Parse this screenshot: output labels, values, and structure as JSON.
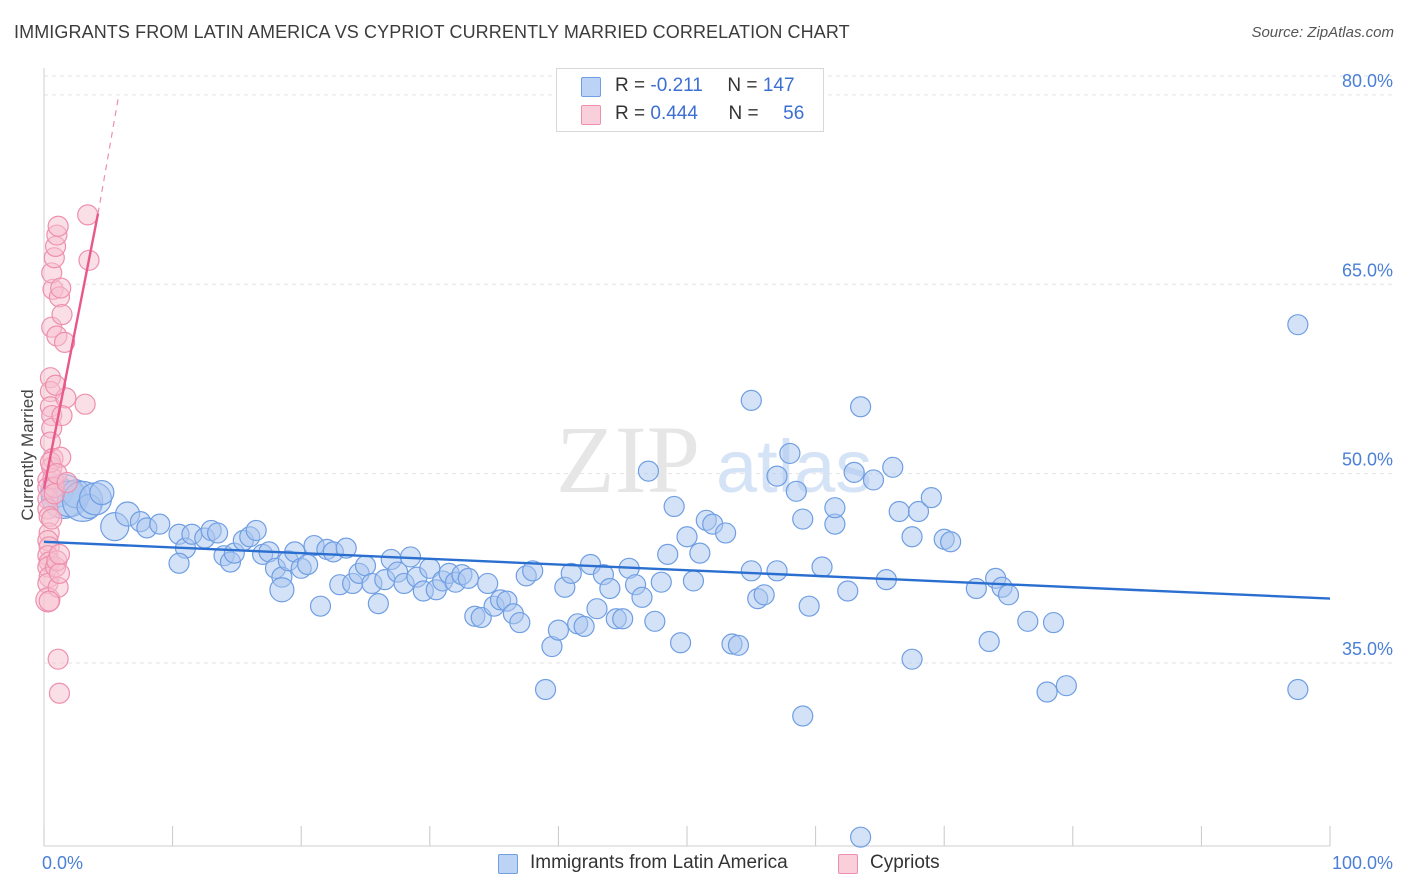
{
  "title": "IMMIGRANTS FROM LATIN AMERICA VS CYPRIOT CURRENTLY MARRIED CORRELATION CHART",
  "source": "Source: ZipAtlas.com",
  "watermark": {
    "zip": "ZIP",
    "atlas": "atlas"
  },
  "colors": {
    "blue_fill": "#a9c6f0",
    "blue_stroke": "#6f9ee3",
    "blue_line": "#2a6fd0",
    "pink_fill": "#f6bfd0",
    "pink_stroke": "#ee8fae",
    "pink_line": "#e8588a",
    "tick_text": "#4a7fd6",
    "grid": "#e3e3e3"
  },
  "legend": {
    "rows": [
      {
        "r_label": "R =",
        "r_value": "-0.211",
        "n_label": "N =",
        "n_value": "147"
      },
      {
        "r_label": "R =",
        "r_value": "0.444",
        "n_label": "N =",
        "n_value": "56"
      }
    ]
  },
  "chart_data": {
    "type": "scatter",
    "xlabel": "",
    "ylabel": "Currently Married",
    "x_tick_labels": [
      "0.0%",
      "100.0%"
    ],
    "y_tick_labels": [
      "35.0%",
      "50.0%",
      "65.0%",
      "80.0%"
    ],
    "y_ticks": [
      35,
      50,
      65,
      80
    ],
    "xlim": [
      0,
      100
    ],
    "ylim": [
      20.5,
      81.5
    ],
    "grid": true,
    "legend_position": "top-center",
    "series": [
      {
        "name": "Immigrants from Latin America",
        "color": "#6f9ee3",
        "trend": {
          "x": [
            0,
            100
          ],
          "y": [
            44.6,
            40.1
          ]
        },
        "points": [
          [
            1.0,
            48.6,
            16
          ],
          [
            1.5,
            48.2,
            22
          ],
          [
            2.0,
            48.0,
            18
          ],
          [
            2.5,
            48.4,
            14
          ],
          [
            3.0,
            47.8,
            20
          ],
          [
            3.5,
            47.4,
            12
          ],
          [
            4.0,
            48.0,
            16
          ],
          [
            4.5,
            48.5,
            12
          ],
          [
            5.5,
            45.8,
            14
          ],
          [
            6.5,
            46.8,
            12
          ],
          [
            7.5,
            46.2,
            10
          ],
          [
            8.0,
            45.7,
            10
          ],
          [
            9.0,
            46.0,
            10
          ],
          [
            10.5,
            45.2,
            10
          ],
          [
            11.0,
            44.1,
            10
          ],
          [
            10.5,
            42.9,
            10
          ],
          [
            11.5,
            45.2,
            10
          ],
          [
            12.5,
            44.9,
            10
          ],
          [
            13.0,
            45.5,
            10
          ],
          [
            13.5,
            45.3,
            10
          ],
          [
            14.0,
            43.5,
            10
          ],
          [
            14.5,
            43.0,
            10
          ],
          [
            14.8,
            43.7,
            10
          ],
          [
            15.5,
            44.7,
            10
          ],
          [
            16.0,
            45.0,
            10
          ],
          [
            16.5,
            45.5,
            10
          ],
          [
            17.0,
            43.6,
            10
          ],
          [
            17.5,
            43.8,
            10
          ],
          [
            18.0,
            42.5,
            10
          ],
          [
            18.5,
            41.8,
            10
          ],
          [
            18.5,
            40.8,
            12
          ],
          [
            19.0,
            43.1,
            10
          ],
          [
            19.5,
            43.8,
            10
          ],
          [
            20.0,
            42.5,
            10
          ],
          [
            20.5,
            42.8,
            10
          ],
          [
            21.0,
            44.3,
            10
          ],
          [
            21.5,
            39.5,
            10
          ],
          [
            22.0,
            44.0,
            10
          ],
          [
            22.5,
            43.8,
            10
          ],
          [
            23.0,
            41.2,
            10
          ],
          [
            23.5,
            44.1,
            10
          ],
          [
            24.0,
            41.3,
            10
          ],
          [
            24.5,
            42.1,
            10
          ],
          [
            25.0,
            42.7,
            10
          ],
          [
            25.5,
            41.3,
            10
          ],
          [
            26.0,
            39.7,
            10
          ],
          [
            26.5,
            41.6,
            10
          ],
          [
            27.0,
            43.2,
            10
          ],
          [
            27.5,
            42.2,
            10
          ],
          [
            28.0,
            41.3,
            10
          ],
          [
            28.5,
            43.4,
            10
          ],
          [
            29.0,
            41.8,
            10
          ],
          [
            29.5,
            40.7,
            10
          ],
          [
            30.0,
            42.5,
            10
          ],
          [
            30.5,
            40.8,
            10
          ],
          [
            31.0,
            41.5,
            10
          ],
          [
            31.5,
            42.1,
            10
          ],
          [
            32.0,
            41.4,
            10
          ],
          [
            32.5,
            42.0,
            10
          ],
          [
            33.0,
            41.7,
            10
          ],
          [
            33.5,
            38.7,
            10
          ],
          [
            34.0,
            38.6,
            10
          ],
          [
            34.5,
            41.3,
            10
          ],
          [
            35.0,
            39.5,
            10
          ],
          [
            35.5,
            40.0,
            10
          ],
          [
            36.0,
            39.9,
            10
          ],
          [
            36.5,
            38.9,
            10
          ],
          [
            37.0,
            38.2,
            10
          ],
          [
            37.5,
            41.9,
            10
          ],
          [
            38.0,
            42.3,
            10
          ],
          [
            39.0,
            32.9,
            10
          ],
          [
            39.5,
            36.3,
            10
          ],
          [
            40.0,
            37.6,
            10
          ],
          [
            40.5,
            41.0,
            10
          ],
          [
            41.0,
            42.1,
            10
          ],
          [
            41.5,
            38.1,
            10
          ],
          [
            42.0,
            37.9,
            10
          ],
          [
            42.5,
            42.8,
            10
          ],
          [
            43.0,
            39.3,
            10
          ],
          [
            43.5,
            42.0,
            10
          ],
          [
            44.0,
            40.9,
            10
          ],
          [
            44.5,
            38.5,
            10
          ],
          [
            45.0,
            38.5,
            10
          ],
          [
            45.5,
            42.5,
            10
          ],
          [
            46.0,
            41.2,
            10
          ],
          [
            46.5,
            40.2,
            10
          ],
          [
            47.0,
            50.2,
            10
          ],
          [
            47.5,
            38.3,
            10
          ],
          [
            48.0,
            41.4,
            10
          ],
          [
            48.5,
            43.6,
            10
          ],
          [
            49.0,
            47.4,
            10
          ],
          [
            49.5,
            36.6,
            10
          ],
          [
            50.0,
            45.0,
            10
          ],
          [
            50.5,
            41.5,
            10
          ],
          [
            51.0,
            43.7,
            10
          ],
          [
            51.5,
            46.3,
            10
          ],
          [
            52.0,
            46.0,
            10
          ],
          [
            53.0,
            45.3,
            10
          ],
          [
            53.5,
            36.5,
            10
          ],
          [
            54.0,
            36.4,
            10
          ],
          [
            55.0,
            42.3,
            10
          ],
          [
            55.5,
            40.1,
            10
          ],
          [
            56.0,
            40.4,
            10
          ],
          [
            57.0,
            42.3,
            10
          ],
          [
            58.0,
            51.6,
            10
          ],
          [
            58.5,
            48.6,
            10
          ],
          [
            59.0,
            46.4,
            10
          ],
          [
            59.5,
            39.5,
            10
          ],
          [
            60.5,
            42.6,
            10
          ],
          [
            61.5,
            46.0,
            10
          ],
          [
            61.5,
            47.3,
            10
          ],
          [
            62.5,
            40.7,
            10
          ],
          [
            63.0,
            50.1,
            10
          ],
          [
            63.5,
            55.3,
            10
          ],
          [
            64.5,
            49.5,
            10
          ],
          [
            65.5,
            41.6,
            10
          ],
          [
            66.0,
            50.5,
            10
          ],
          [
            66.5,
            47.0,
            10
          ],
          [
            67.5,
            45.0,
            10
          ],
          [
            67.5,
            35.3,
            10
          ],
          [
            68.0,
            47.0,
            10
          ],
          [
            69.0,
            48.1,
            10
          ],
          [
            70.0,
            44.8,
            10
          ],
          [
            70.5,
            44.6,
            10
          ],
          [
            72.5,
            40.9,
            10
          ],
          [
            73.5,
            36.7,
            10
          ],
          [
            74.0,
            41.7,
            10
          ],
          [
            74.5,
            41.0,
            10
          ],
          [
            75.0,
            40.4,
            10
          ],
          [
            76.5,
            38.3,
            10
          ],
          [
            78.0,
            32.7,
            10
          ],
          [
            78.5,
            38.2,
            10
          ],
          [
            79.5,
            33.2,
            10
          ],
          [
            63.5,
            21.2,
            10
          ],
          [
            97.5,
            61.8,
            10
          ],
          [
            97.5,
            32.9,
            10
          ],
          [
            55.0,
            55.8,
            10
          ],
          [
            57.0,
            49.8,
            10
          ],
          [
            59.0,
            30.8,
            10
          ]
        ]
      },
      {
        "name": "Cypriots",
        "color": "#ee8fae",
        "trend": {
          "x": [
            0,
            4.2
          ],
          "y": [
            48.8,
            70.6
          ]
        },
        "trend_extension": {
          "x": [
            4.2,
            5.8
          ],
          "y": [
            70.6,
            79.9
          ]
        },
        "points": [
          [
            0.3,
            49.5,
            10
          ],
          [
            0.3,
            48.9,
            10
          ],
          [
            0.3,
            48.0,
            10
          ],
          [
            0.3,
            47.2,
            10
          ],
          [
            0.4,
            46.6,
            10
          ],
          [
            0.4,
            45.3,
            10
          ],
          [
            0.3,
            44.7,
            10
          ],
          [
            0.4,
            44.2,
            10
          ],
          [
            0.3,
            43.5,
            10
          ],
          [
            0.4,
            43.0,
            10
          ],
          [
            0.3,
            42.6,
            10
          ],
          [
            0.4,
            41.8,
            10
          ],
          [
            0.3,
            41.3,
            10
          ],
          [
            0.3,
            40.0,
            12
          ],
          [
            0.5,
            57.6,
            10
          ],
          [
            0.5,
            56.5,
            10
          ],
          [
            0.5,
            55.3,
            10
          ],
          [
            0.6,
            54.6,
            10
          ],
          [
            0.6,
            53.6,
            10
          ],
          [
            0.5,
            52.5,
            10
          ],
          [
            0.7,
            51.2,
            10
          ],
          [
            0.6,
            50.5,
            10
          ],
          [
            0.7,
            49.6,
            10
          ],
          [
            0.8,
            48.9,
            10
          ],
          [
            0.8,
            48.4,
            10
          ],
          [
            0.9,
            42.6,
            10
          ],
          [
            1.0,
            43.1,
            10
          ],
          [
            1.1,
            41.0,
            10
          ],
          [
            1.2,
            42.1,
            10
          ],
          [
            1.2,
            43.6,
            10
          ],
          [
            0.6,
            61.6,
            10
          ],
          [
            0.7,
            64.6,
            10
          ],
          [
            0.6,
            65.9,
            10
          ],
          [
            0.8,
            67.1,
            10
          ],
          [
            0.9,
            68.0,
            10
          ],
          [
            1.0,
            68.9,
            10
          ],
          [
            1.1,
            69.6,
            10
          ],
          [
            1.2,
            64.0,
            10
          ],
          [
            1.3,
            64.7,
            10
          ],
          [
            1.4,
            62.6,
            10
          ],
          [
            1.0,
            60.9,
            10
          ],
          [
            1.6,
            60.4,
            10
          ],
          [
            1.7,
            56.0,
            10
          ],
          [
            1.4,
            54.6,
            10
          ],
          [
            0.9,
            57.0,
            10
          ],
          [
            1.1,
            35.3,
            10
          ],
          [
            1.2,
            32.6,
            10
          ],
          [
            3.2,
            55.5,
            10
          ],
          [
            3.4,
            70.5,
            10
          ],
          [
            3.5,
            66.9,
            10
          ],
          [
            0.5,
            50.9,
            10
          ],
          [
            0.6,
            46.4,
            10
          ],
          [
            0.4,
            39.9,
            10
          ],
          [
            1.3,
            51.3,
            10
          ],
          [
            1.0,
            50.0,
            10
          ],
          [
            1.8,
            49.3,
            10
          ]
        ]
      }
    ]
  },
  "bottom_legend": [
    {
      "label": "Immigrants from Latin America"
    },
    {
      "label": "Cypriots"
    }
  ]
}
